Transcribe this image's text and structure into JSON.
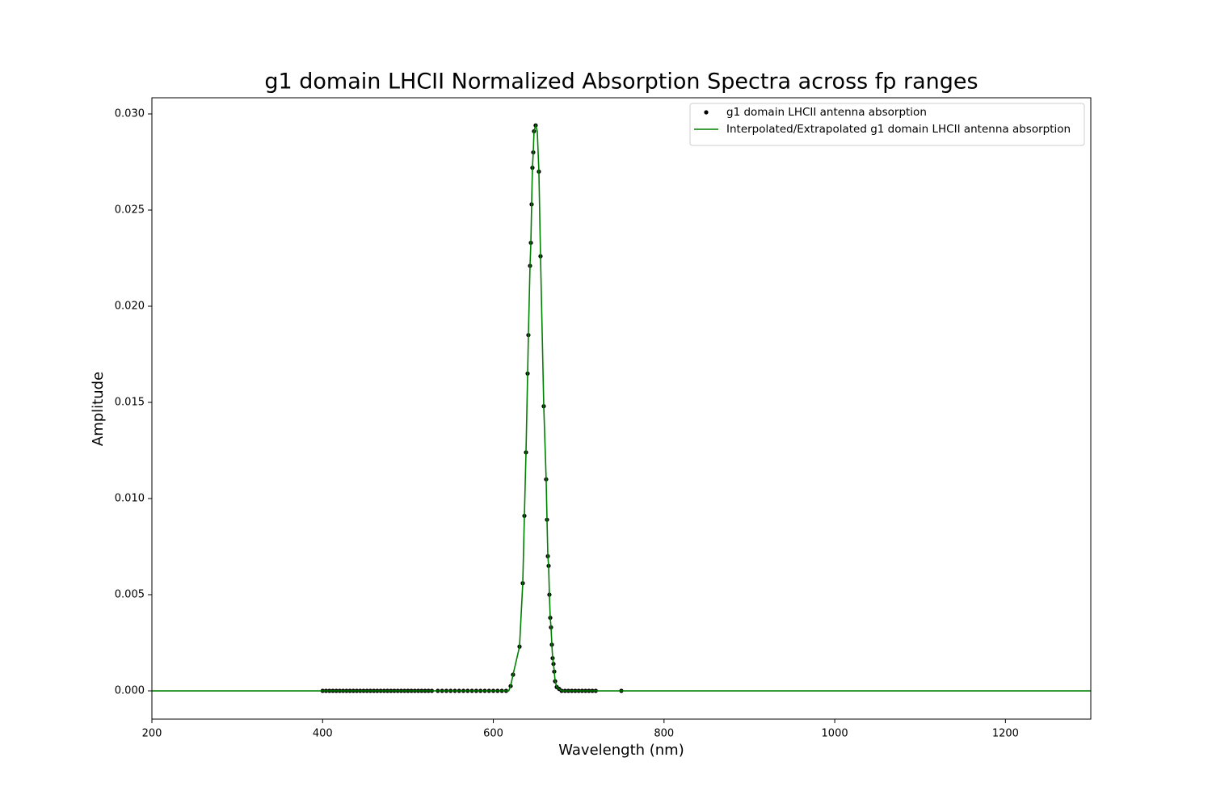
{
  "chart_data": {
    "type": "scatter",
    "title": "g1 domain LHCII Normalized Absorption Spectra across fp ranges",
    "x_label": "Wavelength (nm)",
    "y_label": "Amplitude",
    "xlim": [
      200,
      1300
    ],
    "ylim": [
      -0.00147,
      0.03084
    ],
    "xticks": [
      200,
      400,
      600,
      800,
      1000,
      1200
    ],
    "yticks": [
      {
        "value": 0,
        "label": "0.000"
      },
      {
        "value": 0.005,
        "label": "0.005"
      },
      {
        "value": 0.01,
        "label": "0.010"
      },
      {
        "value": 0.015,
        "label": "0.015"
      },
      {
        "value": 0.02,
        "label": "0.020"
      },
      {
        "value": 0.025,
        "label": "0.025"
      },
      {
        "value": 0.03,
        "label": "0.030"
      }
    ],
    "grid": false,
    "legend": "upper right",
    "series": [
      {
        "name": "g1 domain LHCII antenna absorption",
        "type": "scatter",
        "color": "#000000",
        "x": [
          400,
          404,
          408,
          412,
          416,
          420,
          424,
          428,
          432,
          436,
          440,
          444,
          448,
          452,
          456,
          460,
          464,
          468,
          472,
          476,
          480,
          484,
          488,
          492,
          496,
          500,
          504,
          508,
          512,
          516,
          520,
          524,
          528,
          535,
          540,
          545,
          550,
          555,
          560,
          565,
          570,
          575,
          580,
          585,
          590,
          595,
          600,
          605,
          610,
          615,
          620.3,
          623.1,
          630.7,
          634.5,
          636.4,
          638.3,
          640.2,
          641.1,
          643.0,
          644.0,
          644.9,
          645.8,
          646.8,
          647.7,
          649.6,
          653.4,
          655.3,
          659.1,
          661.9,
          662.9,
          663.9,
          664.8,
          665.7,
          666.7,
          667.6,
          668.6,
          669.5,
          670.5,
          671.4,
          672.4,
          674.3,
          677.1,
          680,
          684,
          688,
          692,
          696,
          700,
          704,
          708,
          712,
          716,
          720,
          750
        ],
        "values": [
          0,
          0,
          0,
          0,
          0,
          0,
          0,
          0,
          0,
          0,
          0,
          0,
          0,
          0,
          0,
          0,
          0,
          0,
          0,
          0,
          0,
          0,
          0,
          0,
          0,
          0,
          0,
          0,
          0,
          0,
          0,
          0,
          0,
          0,
          0,
          0,
          0,
          0,
          0,
          0,
          0,
          0,
          0,
          0,
          0,
          0,
          0,
          0,
          0,
          0,
          0.00025,
          0.00084,
          0.0023,
          0.0056,
          0.0091,
          0.0124,
          0.0165,
          0.0185,
          0.0221,
          0.0233,
          0.0253,
          0.0272,
          0.028,
          0.0291,
          0.0294,
          0.027,
          0.0226,
          0.0148,
          0.011,
          0.0089,
          0.007,
          0.0065,
          0.005,
          0.0038,
          0.0033,
          0.0024,
          0.0017,
          0.0014,
          0.001,
          0.0005,
          0.0002,
          0.0001,
          0,
          0,
          0,
          0,
          0,
          0,
          0,
          0,
          0,
          0,
          0,
          0
        ]
      },
      {
        "name": "Interpolated/Extrapolated g1 domain LHCII antenna absorption",
        "type": "line",
        "color": "#008000",
        "x": [
          200,
          400,
          618,
          620.3,
          623.1,
          630.7,
          634.5,
          636.4,
          638.3,
          640.2,
          641.1,
          643.0,
          644.0,
          644.9,
          645.8,
          646.8,
          647.7,
          649.6,
          651.5,
          653.4,
          655.3,
          659.1,
          661.9,
          662.9,
          663.9,
          664.8,
          665.7,
          666.7,
          667.6,
          668.6,
          669.5,
          670.5,
          671.4,
          672.4,
          674.3,
          677.1,
          680,
          750,
          1300
        ],
        "values": [
          0,
          0,
          0,
          0.00025,
          0.00084,
          0.0023,
          0.0056,
          0.0091,
          0.0124,
          0.0165,
          0.0185,
          0.0221,
          0.0233,
          0.0253,
          0.0272,
          0.028,
          0.0291,
          0.0294,
          0.0291,
          0.027,
          0.0226,
          0.0148,
          0.011,
          0.0089,
          0.007,
          0.0065,
          0.005,
          0.0038,
          0.0033,
          0.0024,
          0.0017,
          0.0014,
          0.001,
          0.0005,
          0.0002,
          0.0001,
          0,
          0,
          0
        ]
      }
    ]
  }
}
